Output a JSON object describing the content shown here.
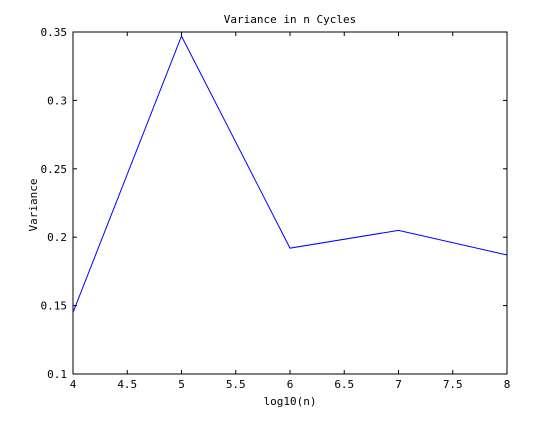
{
  "chart_data": {
    "type": "line",
    "title": "Variance in n Cycles",
    "xlabel": "log10(n)",
    "ylabel": "Variance",
    "xlim": [
      4,
      8
    ],
    "ylim": [
      0.1,
      0.35
    ],
    "xticks": [
      "4",
      "4.5",
      "5",
      "5.5",
      "6",
      "6.5",
      "7",
      "7.5",
      "8"
    ],
    "yticks": [
      "0.1",
      "0.15",
      "0.2",
      "0.25",
      "0.3",
      "0.35"
    ],
    "grid": false,
    "series": [
      {
        "color": "#0000ff",
        "x": [
          4,
          5,
          6,
          7,
          8
        ],
        "y": [
          0.145,
          0.347,
          0.192,
          0.205,
          0.187
        ]
      }
    ]
  }
}
